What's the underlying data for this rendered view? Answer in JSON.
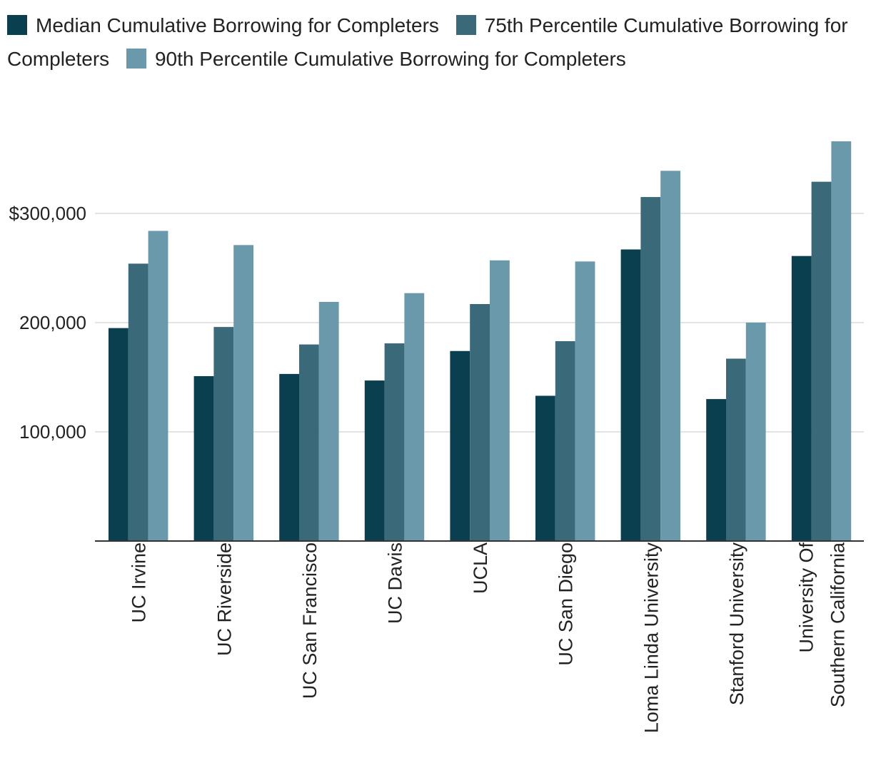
{
  "chart_data": {
    "type": "bar",
    "categories": [
      [
        "UC Irvine"
      ],
      [
        "UC Riverside"
      ],
      [
        "UC San Francisco"
      ],
      [
        "UC Davis"
      ],
      [
        "UCLA"
      ],
      [
        "UC San Diego"
      ],
      [
        "Loma Linda University"
      ],
      [
        "Stanford University"
      ],
      [
        "University Of",
        "Southern California"
      ]
    ],
    "series": [
      {
        "name": "Median Cumulative Borrowing for Completers",
        "color": "#0a3f4f",
        "values": [
          195000,
          151000,
          153000,
          147000,
          174000,
          133000,
          267000,
          130000,
          261000
        ]
      },
      {
        "name": "75th Percentile Cumulative Borrowing for Completers",
        "color": "#3a6a7a",
        "values": [
          254000,
          196000,
          180000,
          181000,
          217000,
          183000,
          315000,
          167000,
          329000
        ]
      },
      {
        "name": "90th Percentile Cumulative Borrowing for Completers",
        "color": "#6999ab",
        "values": [
          284000,
          271000,
          219000,
          227000,
          257000,
          256000,
          339000,
          200000,
          366000
        ]
      }
    ],
    "yticks": [
      {
        "value": 100000,
        "label": "100,000"
      },
      {
        "value": 200000,
        "label": "200,000"
      },
      {
        "value": 300000,
        "label": "$300,000"
      }
    ],
    "ylim": [
      0,
      380000
    ],
    "title": "",
    "xlabel": "",
    "ylabel": "",
    "legend_position": "top",
    "grid": true
  }
}
